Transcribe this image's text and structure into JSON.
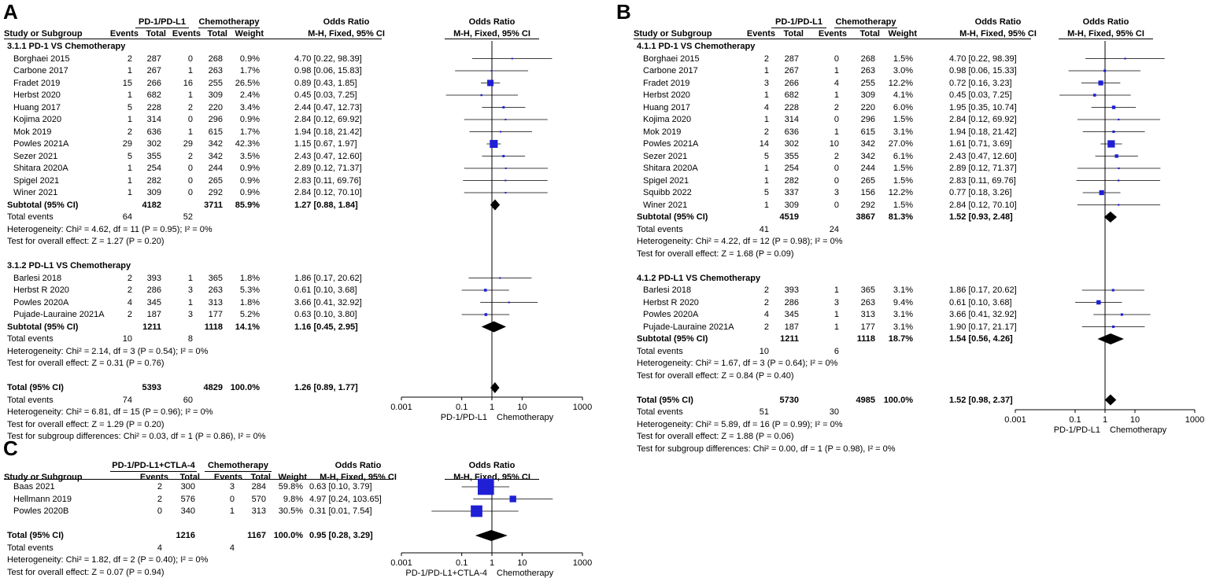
{
  "panels": [
    {
      "id": "A",
      "letter": "A",
      "headers": {
        "study": "Study or Subgroup",
        "exp": "PD-1/PD-L1",
        "ctrl": "Chemotherapy",
        "events": "Events",
        "total": "Total",
        "weight": "Weight",
        "or": "Odds Ratio",
        "method": "M-H, Fixed, 95% CI"
      },
      "plot_header": {
        "title": "Odds Ratio",
        "method": "M-H, Fixed, 95% CI"
      },
      "axis": {
        "ticks": [
          "0.001",
          "0.1",
          "1",
          "10",
          "1000"
        ],
        "left_label": "PD-1/PD-L1",
        "right_label": "Chemotherapy"
      },
      "subgroups": [
        {
          "title": "3.1.1 PD-1 VS Chemotherapy",
          "studies": [
            {
              "name": "Borghaei 2015",
              "ee": "2",
              "et": "287",
              "ce": "0",
              "ct": "268",
              "w": "0.9%",
              "ci": "4.70 [0.22, 98.39]"
            },
            {
              "name": "Carbone 2017",
              "ee": "1",
              "et": "267",
              "ce": "1",
              "ct": "263",
              "w": "1.7%",
              "ci": "0.98 [0.06, 15.83]"
            },
            {
              "name": "Fradet 2019",
              "ee": "15",
              "et": "266",
              "ce": "16",
              "ct": "255",
              "w": "26.5%",
              "ci": "0.89 [0.43, 1.85]"
            },
            {
              "name": "Herbst 2020",
              "ee": "1",
              "et": "682",
              "ce": "1",
              "ct": "309",
              "w": "2.4%",
              "ci": "0.45 [0.03, 7.25]"
            },
            {
              "name": "Huang 2017",
              "ee": "5",
              "et": "228",
              "ce": "2",
              "ct": "220",
              "w": "3.4%",
              "ci": "2.44 [0.47, 12.73]"
            },
            {
              "name": "Kojima 2020",
              "ee": "1",
              "et": "314",
              "ce": "0",
              "ct": "296",
              "w": "0.9%",
              "ci": "2.84 [0.12, 69.92]"
            },
            {
              "name": "Mok  2019",
              "ee": "2",
              "et": "636",
              "ce": "1",
              "ct": "615",
              "w": "1.7%",
              "ci": "1.94 [0.18, 21.42]"
            },
            {
              "name": "Powles  2021A",
              "ee": "29",
              "et": "302",
              "ce": "29",
              "ct": "342",
              "w": "42.3%",
              "ci": "1.15 [0.67, 1.97]"
            },
            {
              "name": "Sezer 2021",
              "ee": "5",
              "et": "355",
              "ce": "2",
              "ct": "342",
              "w": "3.5%",
              "ci": "2.43 [0.47, 12.60]"
            },
            {
              "name": "Shitara  2020A",
              "ee": "1",
              "et": "254",
              "ce": "0",
              "ct": "244",
              "w": "0.9%",
              "ci": "2.89 [0.12, 71.37]"
            },
            {
              "name": "Spigel 2021",
              "ee": "1",
              "et": "282",
              "ce": "0",
              "ct": "265",
              "w": "0.9%",
              "ci": "2.83 [0.11, 69.76]"
            },
            {
              "name": "Winer  2021",
              "ee": "1",
              "et": "309",
              "ce": "0",
              "ct": "292",
              "w": "0.9%",
              "ci": "2.84 [0.12, 70.10]"
            }
          ],
          "subtotal": {
            "label": "Subtotal (95% CI)",
            "et": "4182",
            "ct": "3711",
            "w": "85.9%",
            "ci": "1.27 [0.88, 1.84]"
          },
          "total_events": {
            "label": "Total events",
            "ee": "64",
            "ce": "52"
          },
          "het": "Heterogeneity: Chi² = 4.62, df = 11 (P = 0.95); I² = 0%",
          "overall": "Test for overall effect: Z = 1.27 (P = 0.20)"
        },
        {
          "title": "3.1.2 PD-L1 VS Chemotherapy",
          "studies": [
            {
              "name": "Barlesi 2018",
              "ee": "2",
              "et": "393",
              "ce": "1",
              "ct": "365",
              "w": "1.8%",
              "ci": "1.86 [0.17, 20.62]"
            },
            {
              "name": "Herbst R 2020",
              "ee": "2",
              "et": "286",
              "ce": "3",
              "ct": "263",
              "w": "5.3%",
              "ci": "0.61 [0.10, 3.68]"
            },
            {
              "name": "Powles 2020A",
              "ee": "4",
              "et": "345",
              "ce": "1",
              "ct": "313",
              "w": "1.8%",
              "ci": "3.66 [0.41, 32.92]"
            },
            {
              "name": "Pujade-Lauraine 2021A",
              "ee": "2",
              "et": "187",
              "ce": "3",
              "ct": "177",
              "w": "5.2%",
              "ci": "0.63 [0.10, 3.80]"
            }
          ],
          "subtotal": {
            "label": "Subtotal (95% CI)",
            "et": "1211",
            "ct": "1118",
            "w": "14.1%",
            "ci": "1.16 [0.45, 2.95]"
          },
          "total_events": {
            "label": "Total events",
            "ee": "10",
            "ce": "8"
          },
          "het": "Heterogeneity: Chi² = 2.14, df = 3 (P = 0.54); I² = 0%",
          "overall": "Test for overall effect: Z = 0.31 (P = 0.76)"
        }
      ],
      "total": {
        "label": "Total (95% CI)",
        "et": "5393",
        "ct": "4829",
        "w": "100.0%",
        "ci": "1.26 [0.89, 1.77]"
      },
      "total_events": {
        "label": "Total events",
        "ee": "74",
        "ce": "60"
      },
      "het": "Heterogeneity: Chi² = 6.81, df = 15 (P = 0.96); I² = 0%",
      "overall": "Test for overall effect: Z = 1.29 (P = 0.20)",
      "subgroup_diff": "Test for subgroup differences: Chi² = 0.03, df = 1 (P = 0.86), I² = 0%"
    },
    {
      "id": "B",
      "letter": "B",
      "headers": {
        "study": "Study or Subgroup",
        "exp": "PD-1/PD-L1",
        "ctrl": "Chemotherapy",
        "events": "Events",
        "total": "Total",
        "weight": "Weight",
        "or": "Odds Ratio",
        "method": "M-H, Fixed, 95% CI"
      },
      "plot_header": {
        "title": "Odds Ratio",
        "method": "M-H, Fixed, 95% CI"
      },
      "axis": {
        "ticks": [
          "0.001",
          "0.1",
          "1",
          "10",
          "1000"
        ],
        "left_label": "PD-1/PD-L1",
        "right_label": "Chemotherapy"
      },
      "subgroups": [
        {
          "title": "4.1.1 PD-1 VS Chemotherapy",
          "studies": [
            {
              "name": "Borghaei 2015",
              "ee": "2",
              "et": "287",
              "ce": "0",
              "ct": "268",
              "w": "1.5%",
              "ci": "4.70 [0.22, 98.39]"
            },
            {
              "name": "Carbone 2017",
              "ee": "1",
              "et": "267",
              "ce": "1",
              "ct": "263",
              "w": "3.0%",
              "ci": "0.98 [0.06, 15.33]"
            },
            {
              "name": "Fradet 2019",
              "ee": "3",
              "et": "266",
              "ce": "4",
              "ct": "255",
              "w": "12.2%",
              "ci": "0.72 [0.16, 3.23]"
            },
            {
              "name": "Herbst 2020",
              "ee": "1",
              "et": "682",
              "ce": "1",
              "ct": "309",
              "w": "4.1%",
              "ci": "0.45 [0.03, 7.25]"
            },
            {
              "name": "Huang 2017",
              "ee": "4",
              "et": "228",
              "ce": "2",
              "ct": "220",
              "w": "6.0%",
              "ci": "1.95 [0.35, 10.74]"
            },
            {
              "name": "Kojima 2020",
              "ee": "1",
              "et": "314",
              "ce": "0",
              "ct": "296",
              "w": "1.5%",
              "ci": "2.84 [0.12, 69.92]"
            },
            {
              "name": "Mok  2019",
              "ee": "2",
              "et": "636",
              "ce": "1",
              "ct": "615",
              "w": "3.1%",
              "ci": "1.94 [0.18, 21.42]"
            },
            {
              "name": "Powles  2021A",
              "ee": "14",
              "et": "302",
              "ce": "10",
              "ct": "342",
              "w": "27.0%",
              "ci": "1.61 [0.71, 3.69]"
            },
            {
              "name": "Sezer 2021",
              "ee": "5",
              "et": "355",
              "ce": "2",
              "ct": "342",
              "w": "6.1%",
              "ci": "2.43 [0.47, 12.60]"
            },
            {
              "name": "Shitara  2020A",
              "ee": "1",
              "et": "254",
              "ce": "0",
              "ct": "244",
              "w": "1.5%",
              "ci": "2.89 [0.12, 71.37]"
            },
            {
              "name": "Spigel 2021",
              "ee": "1",
              "et": "282",
              "ce": "0",
              "ct": "265",
              "w": "1.5%",
              "ci": "2.83 [0.11, 69.76]"
            },
            {
              "name": "Squibb 2022",
              "ee": "5",
              "et": "337",
              "ce": "3",
              "ct": "156",
              "w": "12.2%",
              "ci": "0.77 [0.18, 3.26]"
            },
            {
              "name": "Winer  2021",
              "ee": "1",
              "et": "309",
              "ce": "0",
              "ct": "292",
              "w": "1.5%",
              "ci": "2.84 [0.12, 70.10]"
            }
          ],
          "subtotal": {
            "label": "Subtotal (95% CI)",
            "et": "4519",
            "ct": "3867",
            "w": "81.3%",
            "ci": "1.52 [0.93, 2.48]"
          },
          "total_events": {
            "label": "Total events",
            "ee": "41",
            "ce": "24"
          },
          "het": "Heterogeneity: Chi² = 4.22, df = 12 (P = 0.98); I² = 0%",
          "overall": "Test for overall effect: Z = 1.68 (P = 0.09)"
        },
        {
          "title": "4.1.2 PD-L1 VS Chemotherapy",
          "studies": [
            {
              "name": "Barlesi 2018",
              "ee": "2",
              "et": "393",
              "ce": "1",
              "ct": "365",
              "w": "3.1%",
              "ci": "1.86 [0.17, 20.62]"
            },
            {
              "name": "Herbst R 2020",
              "ee": "2",
              "et": "286",
              "ce": "3",
              "ct": "263",
              "w": "9.4%",
              "ci": "0.61 [0.10, 3.68]"
            },
            {
              "name": "Powles 2020A",
              "ee": "4",
              "et": "345",
              "ce": "1",
              "ct": "313",
              "w": "3.1%",
              "ci": "3.66 [0.41, 32.92]"
            },
            {
              "name": "Pujade-Lauraine 2021A",
              "ee": "2",
              "et": "187",
              "ce": "1",
              "ct": "177",
              "w": "3.1%",
              "ci": "1.90 [0.17, 21.17]"
            }
          ],
          "subtotal": {
            "label": "Subtotal (95% CI)",
            "et": "1211",
            "ct": "1118",
            "w": "18.7%",
            "ci": "1.54 [0.56, 4.26]"
          },
          "total_events": {
            "label": "Total events",
            "ee": "10",
            "ce": "6"
          },
          "het": "Heterogeneity: Chi² = 1.67, df = 3 (P = 0.64); I² = 0%",
          "overall": "Test for overall effect: Z = 0.84 (P = 0.40)"
        }
      ],
      "total": {
        "label": "Total (95% CI)",
        "et": "5730",
        "ct": "4985",
        "w": "100.0%",
        "ci": "1.52 [0.98, 2.37]"
      },
      "total_events": {
        "label": "Total events",
        "ee": "51",
        "ce": "30"
      },
      "het": "Heterogeneity: Chi² = 5.89, df = 16 (P = 0.99); I² = 0%",
      "overall": "Test for overall effect: Z = 1.88 (P = 0.06)",
      "subgroup_diff": "Test for subgroup differences: Chi² = 0.00, df = 1 (P = 0.98), I² = 0%"
    },
    {
      "id": "C",
      "letter": "C",
      "headers": {
        "study": "Study or Subgroup",
        "exp": "PD-1/PD-L1+CTLA-4",
        "ctrl": "Chemotherapy",
        "events": "Events",
        "total": "Total",
        "weight": "Weight",
        "or": "Odds Ratio",
        "method": "M-H, Fixed, 95% CI"
      },
      "plot_header": {
        "title": "Odds Ratio",
        "method": "M-H, Fixed, 95% CI"
      },
      "axis": {
        "ticks": [
          "0.001",
          "0.1",
          "1",
          "10",
          "1000"
        ],
        "left_label": "PD-1/PD-L1+CTLA-4",
        "right_label": "Chemotherapy"
      },
      "studies": [
        {
          "name": "Baas  2021",
          "ee": "2",
          "et": "300",
          "ce": "3",
          "ct": "284",
          "w": "59.8%",
          "ci": "0.63 [0.10, 3.79]"
        },
        {
          "name": "Hellmann 2019",
          "ee": "2",
          "et": "576",
          "ce": "0",
          "ct": "570",
          "w": "9.8%",
          "ci": "4.97 [0.24, 103.65]"
        },
        {
          "name": "Powles 2020B",
          "ee": "0",
          "et": "340",
          "ce": "1",
          "ct": "313",
          "w": "30.5%",
          "ci": "0.31 [0.01, 7.54]"
        }
      ],
      "total": {
        "label": "Total (95% CI)",
        "et": "1216",
        "ct": "1167",
        "w": "100.0%",
        "ci": "0.95 [0.28, 3.29]"
      },
      "total_events": {
        "label": "Total events",
        "ee": "4",
        "ce": "4"
      },
      "het": "Heterogeneity: Chi² = 1.82, df = 2 (P = 0.40); I² = 0%",
      "overall": "Test for overall effect: Z = 0.07 (P = 0.94)"
    }
  ],
  "chart_data": [
    {
      "type": "forest",
      "title": "A",
      "scale": "log",
      "xlim": [
        0.001,
        1000
      ],
      "series": [
        {
          "name": "3.1.1 PD-1 VS Chemotherapy",
          "or": [
            4.7,
            0.98,
            0.89,
            0.45,
            2.44,
            2.84,
            1.94,
            1.15,
            2.43,
            2.89,
            2.83,
            2.84
          ],
          "lower": [
            0.22,
            0.06,
            0.43,
            0.03,
            0.47,
            0.12,
            0.18,
            0.67,
            0.47,
            0.12,
            0.11,
            0.12
          ],
          "upper": [
            98.39,
            15.83,
            1.85,
            7.25,
            12.73,
            69.92,
            21.42,
            1.97,
            12.6,
            71.37,
            69.76,
            70.1
          ],
          "subtotal": [
            1.27,
            0.88,
            1.84
          ]
        },
        {
          "name": "3.1.2 PD-L1 VS Chemotherapy",
          "or": [
            1.86,
            0.61,
            3.66,
            0.63
          ],
          "lower": [
            0.17,
            0.1,
            0.41,
            0.1
          ],
          "upper": [
            20.62,
            3.68,
            32.92,
            3.8
          ],
          "subtotal": [
            1.16,
            0.45,
            2.95
          ]
        }
      ],
      "total": [
        1.26,
        0.89,
        1.77
      ]
    },
    {
      "type": "forest",
      "title": "B",
      "scale": "log",
      "xlim": [
        0.001,
        1000
      ],
      "series": [
        {
          "name": "4.1.1 PD-1 VS Chemotherapy",
          "or": [
            4.7,
            0.98,
            0.72,
            0.45,
            1.95,
            2.84,
            1.94,
            1.61,
            2.43,
            2.89,
            2.83,
            0.77,
            2.84
          ],
          "lower": [
            0.22,
            0.06,
            0.16,
            0.03,
            0.35,
            0.12,
            0.18,
            0.71,
            0.47,
            0.12,
            0.11,
            0.18,
            0.12
          ],
          "upper": [
            98.39,
            15.33,
            3.23,
            7.25,
            10.74,
            69.92,
            21.42,
            3.69,
            12.6,
            71.37,
            69.76,
            3.26,
            70.1
          ],
          "subtotal": [
            1.52,
            0.93,
            2.48
          ]
        },
        {
          "name": "4.1.2 PD-L1 VS Chemotherapy",
          "or": [
            1.86,
            0.61,
            3.66,
            1.9
          ],
          "lower": [
            0.17,
            0.1,
            0.41,
            0.17
          ],
          "upper": [
            20.62,
            3.68,
            32.92,
            21.17
          ],
          "subtotal": [
            1.54,
            0.56,
            4.26
          ]
        }
      ],
      "total": [
        1.52,
        0.98,
        2.37
      ]
    },
    {
      "type": "forest",
      "title": "C",
      "scale": "log",
      "xlim": [
        0.001,
        1000
      ],
      "series": [
        {
          "name": "PD-1/PD-L1+CTLA-4 vs Chemotherapy",
          "or": [
            0.63,
            4.97,
            0.31
          ],
          "lower": [
            0.1,
            0.24,
            0.01
          ],
          "upper": [
            3.79,
            103.65,
            7.54
          ]
        }
      ],
      "total": [
        0.95,
        0.28,
        3.29
      ]
    }
  ]
}
